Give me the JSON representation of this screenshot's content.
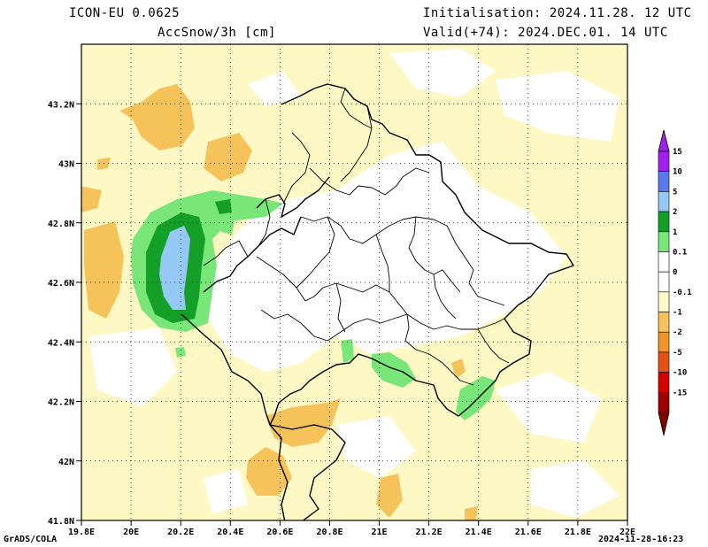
{
  "header": {
    "model": "ICON-EU 0.0625",
    "variable": "AccSnow/3h [cm]",
    "init": "Initialisation: 2024.11.28. 12 UTC",
    "valid": "Valid(+74): 2024.DEC.01. 14 UTC"
  },
  "footer": {
    "left": "GrADS/COLA",
    "right": "2024-11-28-16:23"
  },
  "axes": {
    "lon_ticks": [
      "19.8E",
      "20E",
      "20.2E",
      "20.4E",
      "20.6E",
      "20.8E",
      "21E",
      "21.2E",
      "21.4E",
      "21.6E",
      "21.8E",
      "22E"
    ],
    "lat_ticks": [
      "41.8N",
      "42N",
      "42.2N",
      "42.4N",
      "42.6N",
      "42.8N",
      "43N",
      "43.2N"
    ],
    "lon_range": [
      19.8,
      22.0
    ],
    "lat_range": [
      41.8,
      43.4
    ],
    "grid": true
  },
  "colorbar": {
    "levels": [
      {
        "label": "15",
        "color": "#a020f0"
      },
      {
        "label": "10",
        "color": "#5a78f0"
      },
      {
        "label": "5",
        "color": "#96c8f5"
      },
      {
        "label": "2",
        "color": "#14a028"
      },
      {
        "label": "1",
        "color": "#78e678"
      },
      {
        "label": "0.1",
        "color": "#ffffff"
      },
      {
        "label": "0",
        "color": "#ffffff"
      },
      {
        "label": "-0.1",
        "color": "#fffac8"
      },
      {
        "label": "-1",
        "color": "#f5c35a"
      },
      {
        "label": "-2",
        "color": "#f09628"
      },
      {
        "label": "-5",
        "color": "#e65014"
      },
      {
        "label": "-10",
        "color": "#d70000"
      },
      {
        "label": "-15",
        "color": "#a00000"
      }
    ],
    "colors": {
      "top_arrow": "#a020f0",
      "bottom_arrow": "#820000"
    }
  },
  "palette": {
    "light_yellow": "#fdf8c4",
    "orange": "#f5c35a",
    "light_green": "#78e678",
    "dark_green": "#14a028",
    "light_blue": "#96c8f5"
  }
}
